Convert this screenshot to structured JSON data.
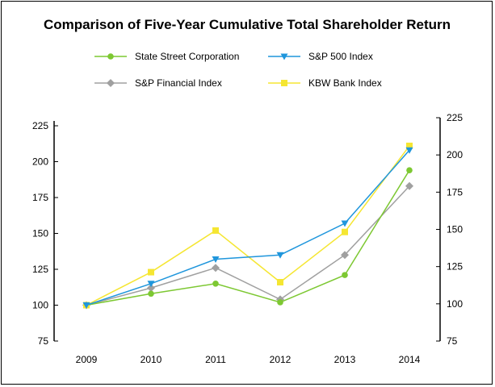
{
  "chart_data": {
    "type": "line",
    "title": "Comparison of Five-Year Cumulative Total Shareholder Return",
    "xlabel": "",
    "ylabel": "",
    "categories": [
      "2009",
      "2010",
      "2011",
      "2012",
      "2013",
      "2014"
    ],
    "ylim": [
      75,
      225
    ],
    "ylim_right": [
      75,
      225
    ],
    "yticks_left": [
      75,
      100,
      125,
      150,
      175,
      200,
      225
    ],
    "yticks_right": [
      75,
      100,
      125,
      150,
      175,
      200,
      225
    ],
    "grid": false,
    "legend_position": "top",
    "series": [
      {
        "name": "State Street Corporation",
        "color": "#7dc832",
        "marker": "circle",
        "values": [
          100,
          108,
          115,
          102,
          121,
          194
        ]
      },
      {
        "name": "S&P 500 Index",
        "color": "#1f96dc",
        "marker": "triangle-down",
        "values": [
          100,
          115,
          132,
          135,
          157,
          208
        ]
      },
      {
        "name": "S&P Financial Index",
        "color": "#a0a0a0",
        "marker": "diamond",
        "values": [
          100,
          112,
          126,
          104,
          135,
          183
        ]
      },
      {
        "name": "KBW Bank Index",
        "color": "#f5e632",
        "marker": "square",
        "values": [
          100,
          123,
          152,
          116,
          151,
          211
        ]
      }
    ]
  }
}
